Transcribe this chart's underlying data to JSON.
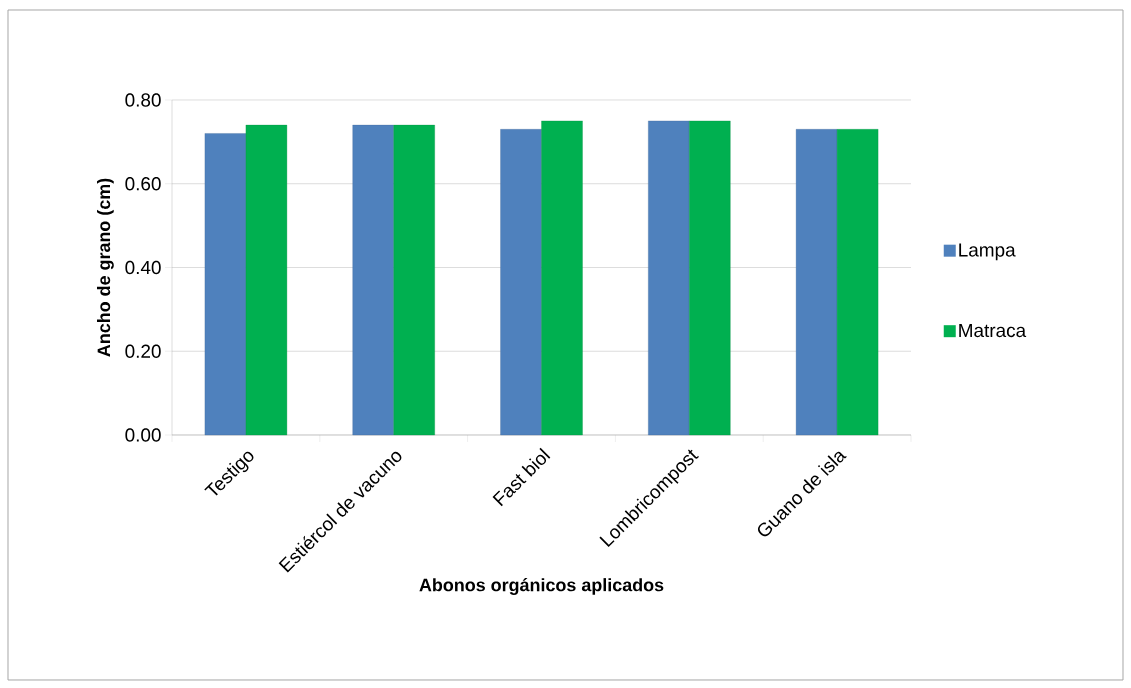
{
  "chart_data": {
    "type": "bar",
    "xlabel": "Abonos orgánicos aplicados",
    "ylabel": "Ancho de grano (cm)",
    "categories": [
      "Testigo",
      "Estiércol de vacuno",
      "Fast biol",
      "Lombricompost",
      "Guano de isla"
    ],
    "series": [
      {
        "name": "Lampa",
        "color": "#4f81bd",
        "values": [
          0.72,
          0.74,
          0.73,
          0.75,
          0.73
        ]
      },
      {
        "name": "Matraca",
        "color": "#00b050",
        "values": [
          0.74,
          0.74,
          0.75,
          0.75,
          0.73
        ]
      }
    ],
    "ylim": [
      0,
      0.8
    ],
    "yticks": [
      {
        "value": 0,
        "label": "0.00"
      },
      {
        "value": 0.2,
        "label": "0.20"
      },
      {
        "value": 0.4,
        "label": "0.40"
      },
      {
        "value": 0.6,
        "label": "0.60"
      },
      {
        "value": 0.8,
        "label": "0.80"
      }
    ],
    "grid": "y",
    "legend": "right"
  }
}
